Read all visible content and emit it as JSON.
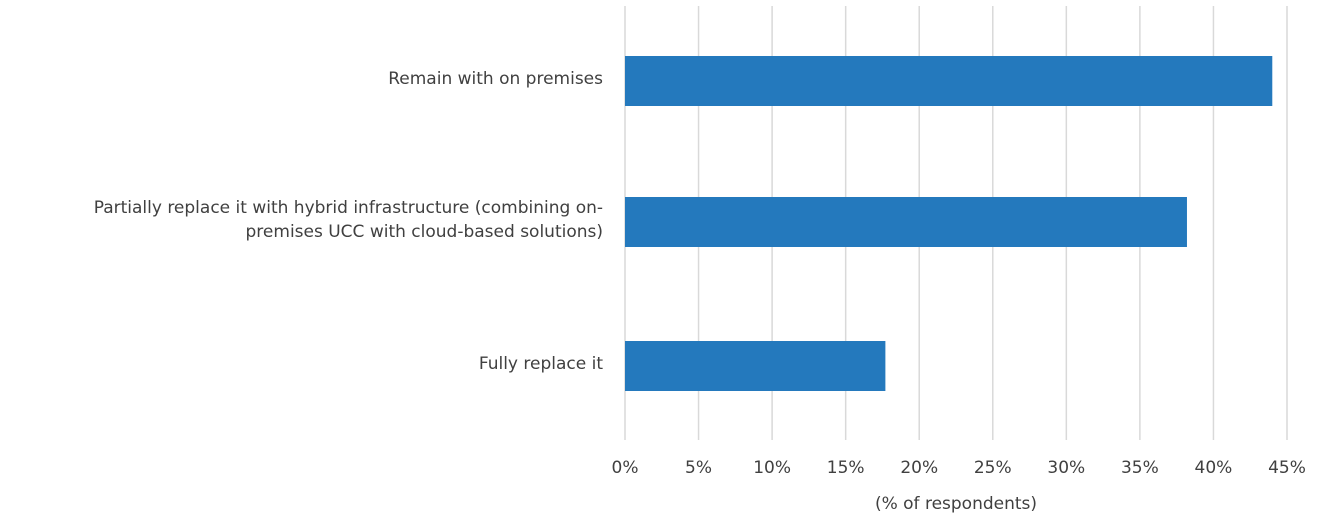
{
  "chart_data": {
    "type": "bar",
    "orientation": "horizontal",
    "categories": [
      "Remain with on premises",
      "Partially replace it with hybrid infrastructure (combining on-premises UCC with cloud-based solutions)",
      "Fully replace it"
    ],
    "category_lines": [
      [
        "Remain with on premises"
      ],
      [
        "Partially replace it with hybrid infrastructure (combining on-",
        "premises UCC with cloud-based solutions)"
      ],
      [
        "Fully replace it"
      ]
    ],
    "values": [
      44,
      38.2,
      17.7
    ],
    "xlim": [
      0,
      45
    ],
    "x_ticks": [
      "0%",
      "5%",
      "10%",
      "15%",
      "20%",
      "25%",
      "30%",
      "35%",
      "40%",
      "45%"
    ],
    "xlabel": "(% of respondents)",
    "title": "",
    "grid": "vertical",
    "colors": {
      "bar": "#2479bd",
      "grid": "#d9d9d9"
    }
  }
}
